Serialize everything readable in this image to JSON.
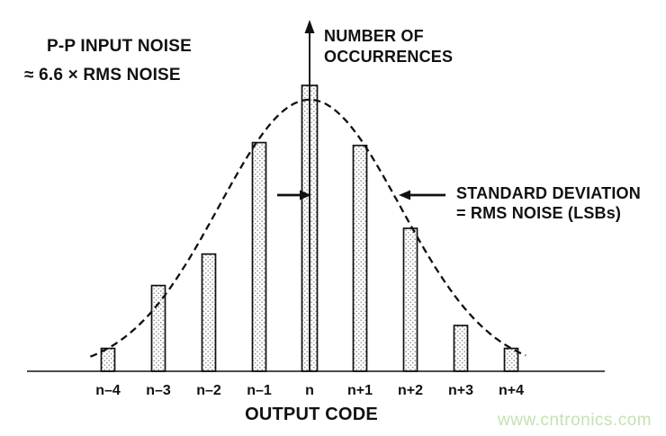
{
  "figure": {
    "pp_noise_note": {
      "line1": "P-P INPUT NOISE",
      "line2": "≈  6.6 × RMS NOISE"
    },
    "y_axis_label": {
      "line1": "NUMBER OF",
      "line2": "OCCURRENCES"
    },
    "sigma_annotation": {
      "line1": "STANDARD DEVIATION",
      "line2": "= RMS NOISE (LSBs)"
    },
    "x_axis_title": "OUTPUT CODE",
    "watermark": "www.cntronics.com",
    "colors": {
      "ink": "#111111",
      "watermark_green": "#c3e3b0",
      "stipple_dot": "#8f8f8f",
      "background": "#ffffff"
    }
  },
  "chart_data": {
    "type": "bar",
    "categories": [
      "n–4",
      "n–3",
      "n–2",
      "n–1",
      "n",
      "n+1",
      "n+2",
      "n+3",
      "n+4"
    ],
    "values": [
      0.08,
      0.3,
      0.41,
      0.8,
      1.0,
      0.79,
      0.5,
      0.16,
      0.08
    ],
    "values_unit": "relative occurrences (no numeric y scale shown, normalized to peak bar at code n)",
    "xlabel": "OUTPUT CODE",
    "ylabel": "NUMBER OF OCCURRENCES",
    "ylim": [
      0,
      1.05
    ],
    "grid": false,
    "legend": "none",
    "bar_fill": "stippled-dot-pattern",
    "overlay_curve": {
      "type": "gaussian",
      "style": "dashed",
      "center_code": 0,
      "sigma_codes": 1.8,
      "peak_relative": 0.95,
      "x_range_codes": [
        -4.35,
        4.3
      ]
    },
    "annotations": [
      {
        "text": "STANDARD DEVIATION = RMS NOISE (LSBs)",
        "arrows_relative_height": 0.62
      },
      {
        "text": "P-P INPUT NOISE ≈ 6.6 × RMS NOISE"
      }
    ]
  }
}
